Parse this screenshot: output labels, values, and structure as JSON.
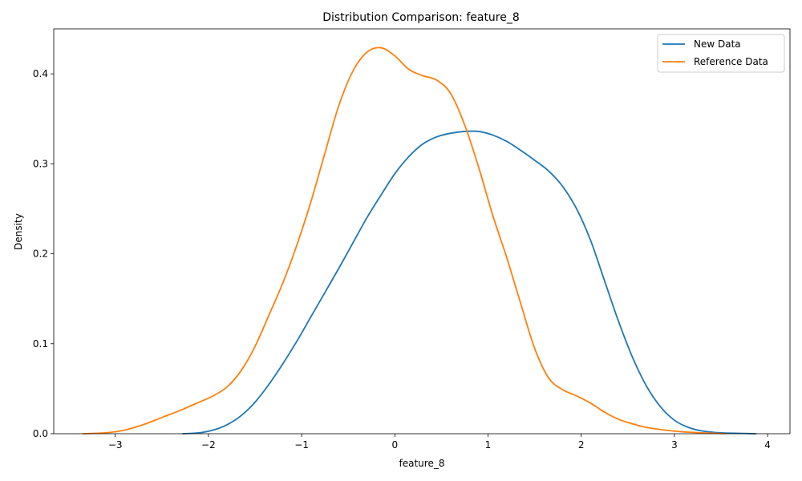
{
  "chart_data": {
    "type": "line",
    "title": "Distribution Comparison: feature_8",
    "xlabel": "feature_8",
    "ylabel": "Density",
    "xlim": [
      -3.66,
      4.24
    ],
    "ylim": [
      0.0,
      0.45
    ],
    "xticks": [
      -3,
      -2,
      -1,
      0,
      1,
      2,
      3,
      4
    ],
    "xtick_labels": [
      "−3",
      "−2",
      "−1",
      "0",
      "1",
      "2",
      "3",
      "4"
    ],
    "yticks": [
      0.0,
      0.1,
      0.2,
      0.3,
      0.4
    ],
    "ytick_labels": [
      "0.0",
      "0.1",
      "0.2",
      "0.3",
      "0.4"
    ],
    "grid": false,
    "legend": {
      "position": "top-right"
    },
    "series": [
      {
        "name": "New Data",
        "color": "#1f77b4",
        "points": [
          [
            -2.28,
            0.0
          ],
          [
            -2.1,
            0.001
          ],
          [
            -1.95,
            0.004
          ],
          [
            -1.8,
            0.01
          ],
          [
            -1.65,
            0.02
          ],
          [
            -1.5,
            0.035
          ],
          [
            -1.35,
            0.055
          ],
          [
            -1.2,
            0.078
          ],
          [
            -1.05,
            0.103
          ],
          [
            -0.9,
            0.13
          ],
          [
            -0.75,
            0.157
          ],
          [
            -0.6,
            0.184
          ],
          [
            -0.45,
            0.212
          ],
          [
            -0.3,
            0.24
          ],
          [
            -0.15,
            0.265
          ],
          [
            0.0,
            0.289
          ],
          [
            0.15,
            0.308
          ],
          [
            0.3,
            0.322
          ],
          [
            0.45,
            0.33
          ],
          [
            0.6,
            0.334
          ],
          [
            0.75,
            0.336
          ],
          [
            0.9,
            0.336
          ],
          [
            1.05,
            0.332
          ],
          [
            1.2,
            0.325
          ],
          [
            1.35,
            0.315
          ],
          [
            1.5,
            0.304
          ],
          [
            1.65,
            0.292
          ],
          [
            1.8,
            0.275
          ],
          [
            1.95,
            0.25
          ],
          [
            2.1,
            0.215
          ],
          [
            2.25,
            0.17
          ],
          [
            2.4,
            0.125
          ],
          [
            2.55,
            0.085
          ],
          [
            2.7,
            0.053
          ],
          [
            2.85,
            0.03
          ],
          [
            3.0,
            0.015
          ],
          [
            3.15,
            0.007
          ],
          [
            3.3,
            0.003
          ],
          [
            3.5,
            0.001
          ],
          [
            3.88,
            0.0
          ]
        ]
      },
      {
        "name": "Reference Data",
        "color": "#ff7f0e",
        "points": [
          [
            -3.35,
            0.0
          ],
          [
            -3.1,
            0.001
          ],
          [
            -2.9,
            0.004
          ],
          [
            -2.7,
            0.01
          ],
          [
            -2.5,
            0.018
          ],
          [
            -2.3,
            0.026
          ],
          [
            -2.1,
            0.035
          ],
          [
            -1.95,
            0.042
          ],
          [
            -1.8,
            0.052
          ],
          [
            -1.65,
            0.07
          ],
          [
            -1.5,
            0.097
          ],
          [
            -1.35,
            0.132
          ],
          [
            -1.2,
            0.168
          ],
          [
            -1.05,
            0.21
          ],
          [
            -0.9,
            0.258
          ],
          [
            -0.75,
            0.312
          ],
          [
            -0.6,
            0.365
          ],
          [
            -0.45,
            0.403
          ],
          [
            -0.3,
            0.424
          ],
          [
            -0.15,
            0.429
          ],
          [
            0.0,
            0.42
          ],
          [
            0.15,
            0.405
          ],
          [
            0.3,
            0.398
          ],
          [
            0.45,
            0.393
          ],
          [
            0.6,
            0.378
          ],
          [
            0.75,
            0.343
          ],
          [
            0.9,
            0.296
          ],
          [
            1.05,
            0.243
          ],
          [
            1.2,
            0.196
          ],
          [
            1.35,
            0.145
          ],
          [
            1.5,
            0.095
          ],
          [
            1.65,
            0.062
          ],
          [
            1.8,
            0.049
          ],
          [
            1.95,
            0.042
          ],
          [
            2.1,
            0.034
          ],
          [
            2.25,
            0.024
          ],
          [
            2.4,
            0.016
          ],
          [
            2.55,
            0.011
          ],
          [
            2.7,
            0.007
          ],
          [
            2.9,
            0.004
          ],
          [
            3.1,
            0.002
          ],
          [
            3.3,
            0.001
          ],
          [
            3.55,
            0.0
          ]
        ]
      }
    ]
  }
}
